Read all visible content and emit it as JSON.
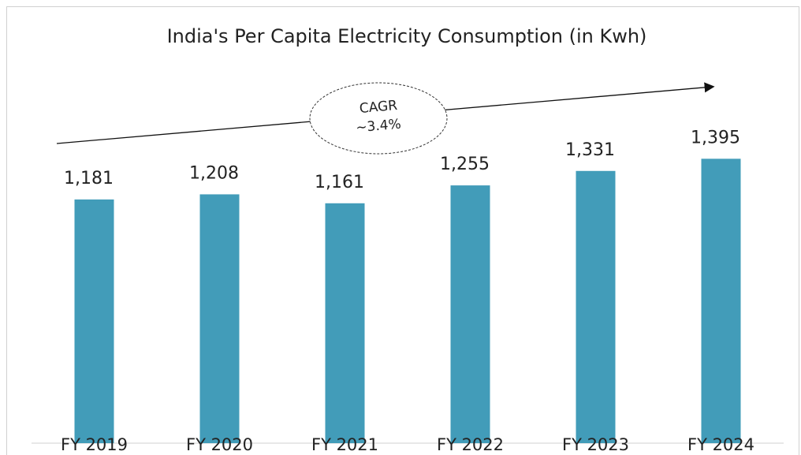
{
  "chart_data": {
    "type": "bar",
    "title": "India's Per Capita Electricity Consumption (in Kwh)",
    "categories": [
      "FY 2019",
      "FY 2020",
      "FY 2021",
      "FY 2022",
      "FY 2023",
      "FY 2024"
    ],
    "values": [
      1181,
      1208,
      1161,
      1255,
      1331,
      1395
    ],
    "value_labels": [
      "1,181",
      "1,208",
      "1,161",
      "1,255",
      "1,331",
      "1,395"
    ],
    "color": "#429cb9",
    "ylim": [
      -100,
      1500
    ],
    "annotation": [
      "CAGR",
      "~3.4%"
    ]
  }
}
